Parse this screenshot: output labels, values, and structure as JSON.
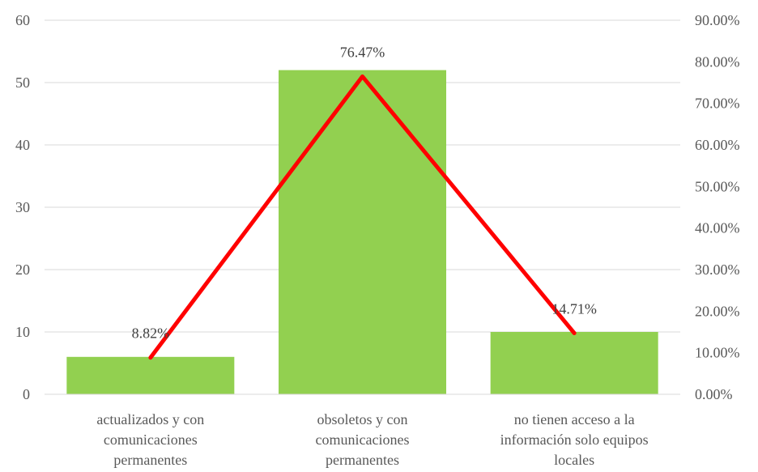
{
  "chart_data": {
    "type": "bar",
    "categories": [
      [
        "actualizados y con",
        "comunicaciones",
        "permanentes"
      ],
      [
        "obsoletos y con",
        "comunicaciones",
        "permanentes"
      ],
      [
        "no tienen acceso a la",
        "información solo equipos",
        "locales"
      ]
    ],
    "bar_values": [
      6,
      52,
      10
    ],
    "line_values": [
      8.82,
      76.47,
      14.71
    ],
    "data_labels": [
      "8.82%",
      "76.47%",
      "14.71%"
    ],
    "y_left": {
      "min": 0,
      "max": 60,
      "step": 10,
      "ticks": [
        "0",
        "10",
        "20",
        "30",
        "40",
        "50",
        "60"
      ]
    },
    "y_right": {
      "min": 0,
      "max": 90,
      "step": 10,
      "ticks": [
        "0.00%",
        "10.00%",
        "20.00%",
        "30.00%",
        "40.00%",
        "50.00%",
        "60.00%",
        "70.00%",
        "80.00%",
        "90.00%"
      ]
    },
    "grid": true,
    "colors": {
      "bar": "#92d050",
      "line": "#ff0000",
      "grid": "#d9d9d9",
      "text": "#595959"
    }
  }
}
